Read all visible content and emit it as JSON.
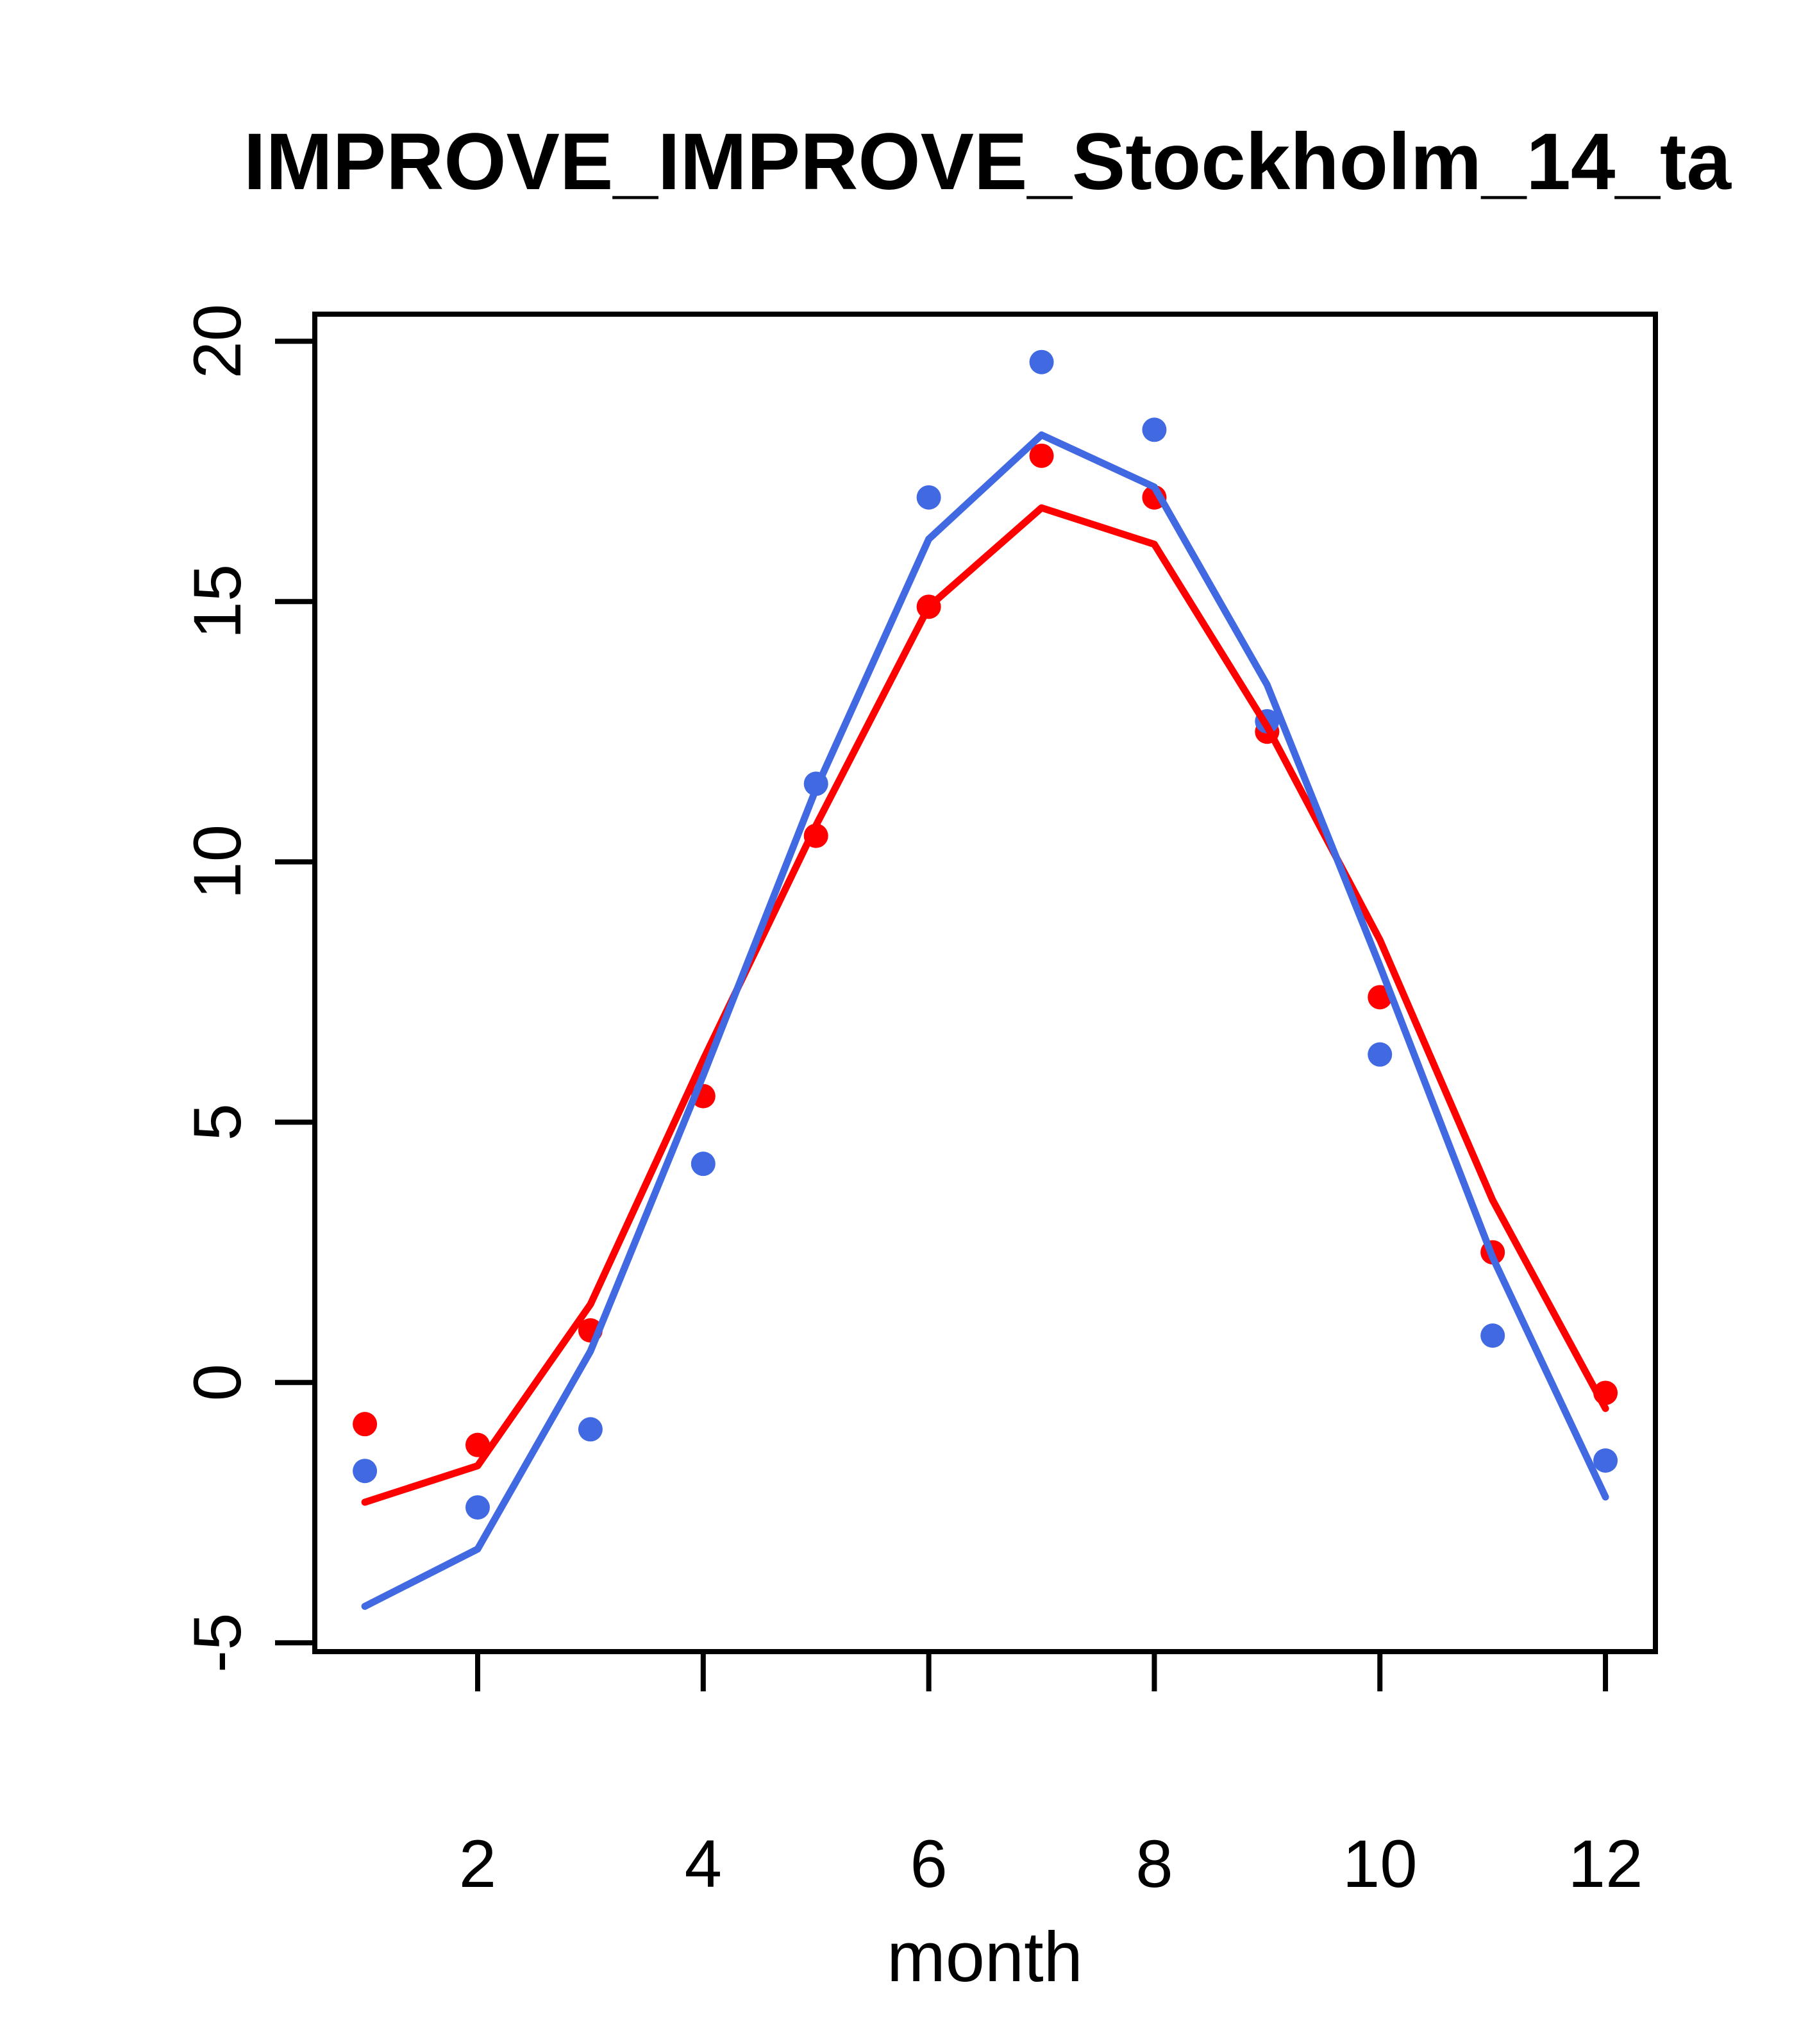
{
  "chart_data": {
    "type": "line",
    "title": "IMPROVE_IMPROVE_Stockholm_14_ta",
    "xlabel": "month",
    "ylabel": "",
    "x": [
      1,
      2,
      3,
      4,
      5,
      6,
      7,
      8,
      9,
      10,
      11,
      12
    ],
    "series": [
      {
        "name": "red-points",
        "style": "points",
        "color": "#ff0000",
        "values": [
          -0.8,
          -1.2,
          1.0,
          5.5,
          10.5,
          14.9,
          17.8,
          17.0,
          12.5,
          7.4,
          2.5,
          -0.2
        ]
      },
      {
        "name": "blue-points",
        "style": "points",
        "color": "#4169e1",
        "values": [
          -1.7,
          -2.4,
          -0.9,
          4.2,
          11.5,
          17.0,
          19.6,
          18.3,
          12.7,
          6.3,
          0.9,
          -1.5
        ]
      },
      {
        "name": "red-line",
        "style": "line",
        "color": "#ff0000",
        "values": [
          -2.3,
          -1.6,
          1.5,
          6.2,
          10.7,
          14.9,
          16.8,
          16.1,
          12.6,
          8.5,
          3.5,
          -0.5
        ]
      },
      {
        "name": "blue-line",
        "style": "line",
        "color": "#4169e1",
        "values": [
          -4.3,
          -3.2,
          0.6,
          5.9,
          11.4,
          16.2,
          18.2,
          17.2,
          13.4,
          8.0,
          2.4,
          -2.2
        ]
      }
    ],
    "xticks": [
      2,
      4,
      6,
      8,
      10,
      12
    ],
    "yticks": [
      -5,
      0,
      5,
      10,
      15,
      20
    ],
    "xlim": [
      0.556,
      12.443
    ],
    "ylim": [
      -5.17,
      20.52
    ],
    "grid": false,
    "legend": "none",
    "background": "#ffffff",
    "axis_color": "#000000"
  }
}
